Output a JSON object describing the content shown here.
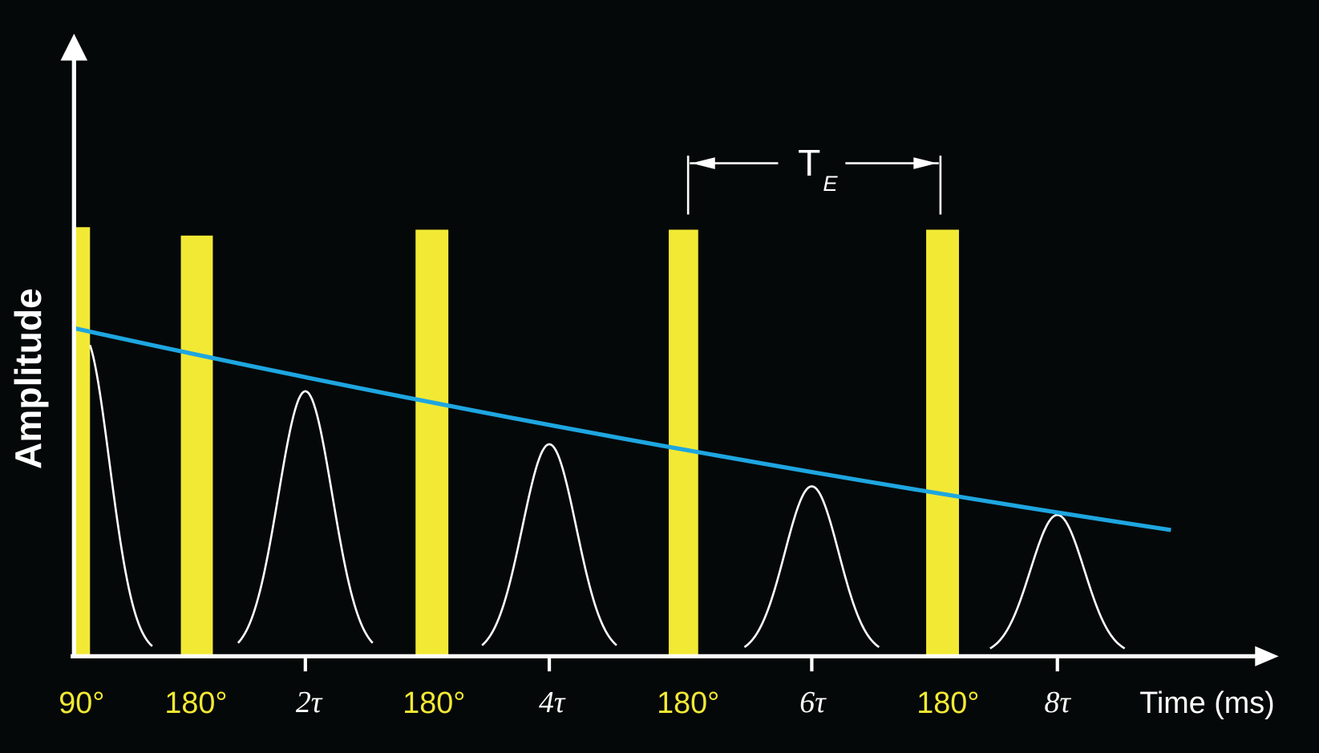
{
  "axes": {
    "y_label": "Amplitude",
    "x_label": "Time (ms)"
  },
  "pulses": [
    {
      "label": "90°"
    },
    {
      "label": "180°"
    },
    {
      "label": "180°"
    },
    {
      "label": "180°"
    },
    {
      "label": "180°"
    }
  ],
  "echoes": [
    {
      "label": "2τ"
    },
    {
      "label": "4τ"
    },
    {
      "label": "6τ"
    },
    {
      "label": "8τ"
    }
  ],
  "interval": {
    "label": "T",
    "subscript": "E"
  }
}
